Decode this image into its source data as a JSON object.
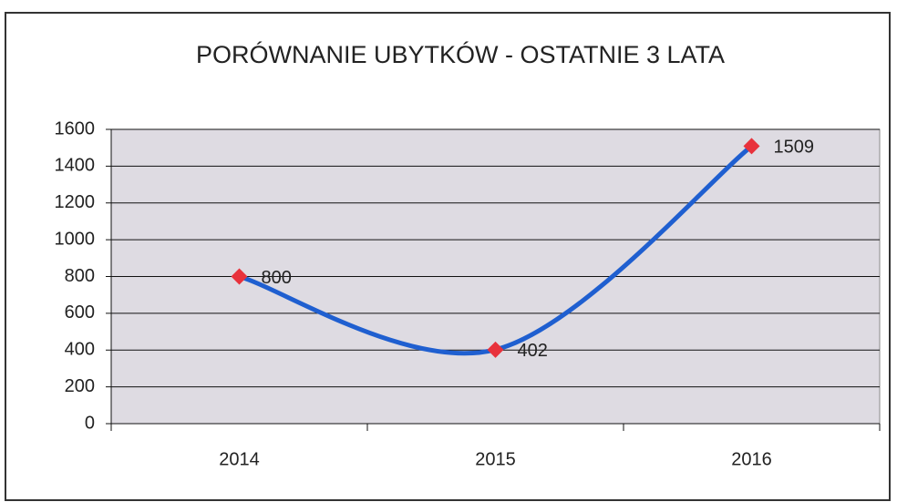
{
  "chart_data": {
    "type": "line",
    "title": "PORÓWNANIE UBYTKÓW - OSTATNIE 3 LATA",
    "categories": [
      "2014",
      "2015",
      "2016"
    ],
    "series": [
      {
        "color": "#1f5fd0",
        "marker_color": "#e8323c",
        "values": [
          800,
          402,
          1509
        ]
      }
    ],
    "ylim": [
      0,
      1600
    ],
    "yticks": [
      0,
      200,
      400,
      600,
      800,
      1000,
      1200,
      1400,
      1600
    ],
    "grid": true
  }
}
